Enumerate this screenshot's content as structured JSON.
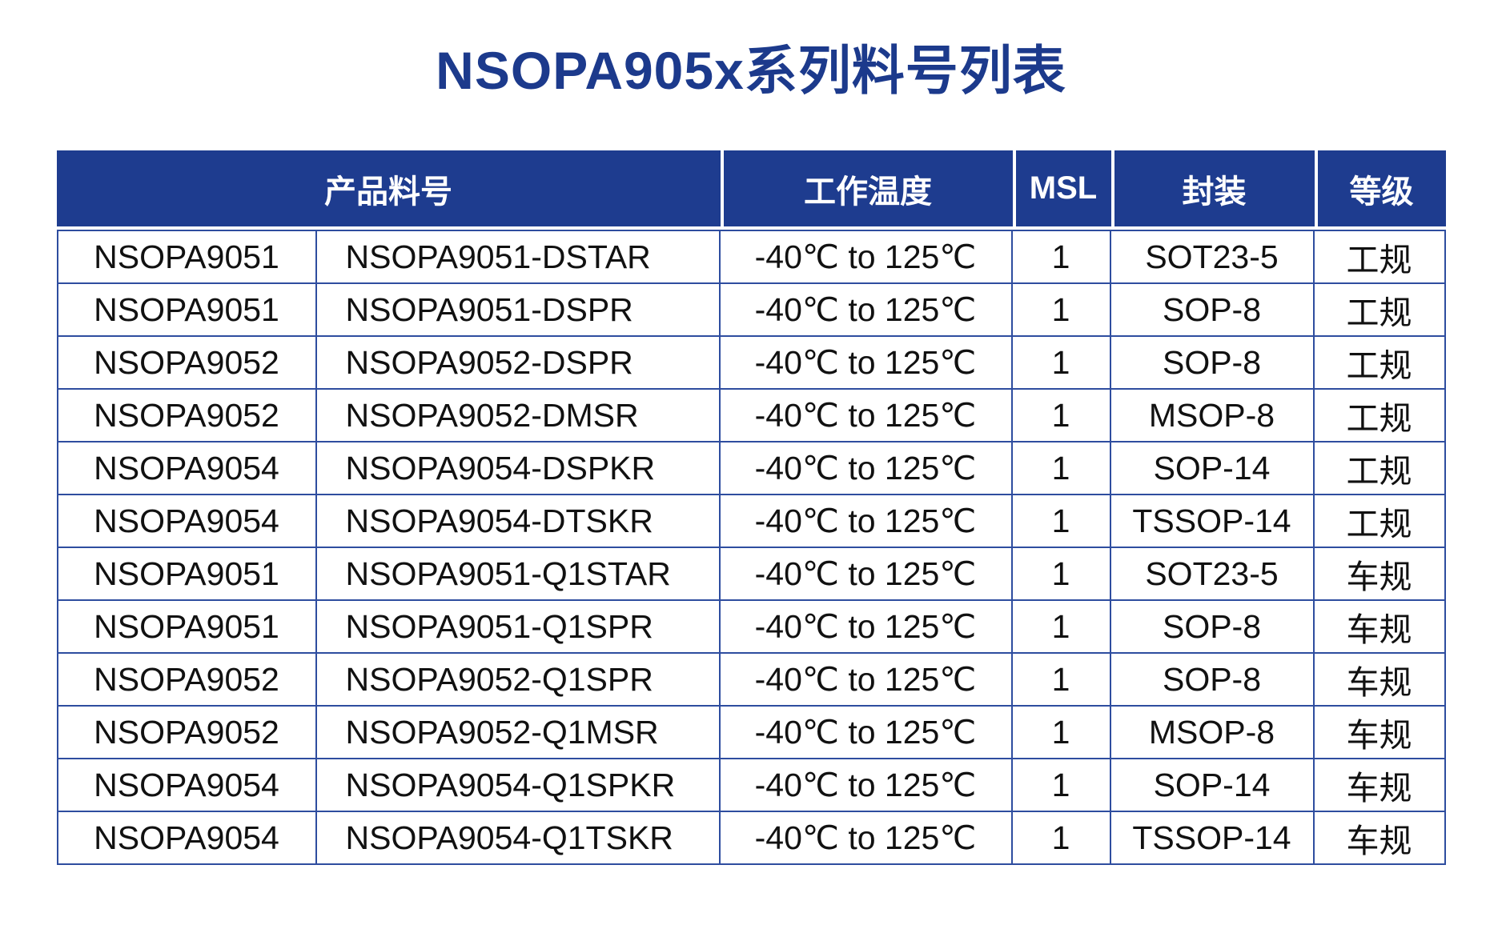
{
  "title": "NSOPA905x系列料号列表",
  "colors": {
    "title_text": "#1c3a8c",
    "header_bg": "#1e3c8f",
    "header_text": "#ffffff",
    "grid_border": "#2e4d9f",
    "cell_text": "#111111"
  },
  "table": {
    "headers": [
      {
        "label": "产品料号",
        "colspan": 2
      },
      {
        "label": "工作温度",
        "colspan": 1
      },
      {
        "label": "MSL",
        "colspan": 1
      },
      {
        "label": "封装",
        "colspan": 1
      },
      {
        "label": "等级",
        "colspan": 1
      }
    ],
    "rows": [
      [
        "NSOPA9051",
        "NSOPA9051-DSTAR",
        "-40℃ to 125℃",
        "1",
        "SOT23-5",
        "工规"
      ],
      [
        "NSOPA9051",
        "NSOPA9051-DSPR",
        "-40℃ to 125℃",
        "1",
        "SOP-8",
        "工规"
      ],
      [
        "NSOPA9052",
        "NSOPA9052-DSPR",
        "-40℃ to 125℃",
        "1",
        "SOP-8",
        "工规"
      ],
      [
        "NSOPA9052",
        "NSOPA9052-DMSR",
        "-40℃ to 125℃",
        "1",
        "MSOP-8",
        "工规"
      ],
      [
        "NSOPA9054",
        "NSOPA9054-DSPKR",
        "-40℃ to 125℃",
        "1",
        "SOP-14",
        "工规"
      ],
      [
        "NSOPA9054",
        "NSOPA9054-DTSKR",
        "-40℃ to 125℃",
        "1",
        "TSSOP-14",
        "工规"
      ],
      [
        "NSOPA9051",
        "NSOPA9051-Q1STAR",
        "-40℃ to 125℃",
        "1",
        "SOT23-5",
        "车规"
      ],
      [
        "NSOPA9051",
        "NSOPA9051-Q1SPR",
        "-40℃ to 125℃",
        "1",
        "SOP-8",
        "车规"
      ],
      [
        "NSOPA9052",
        "NSOPA9052-Q1SPR",
        "-40℃ to 125℃",
        "1",
        "SOP-8",
        "车规"
      ],
      [
        "NSOPA9052",
        "NSOPA9052-Q1MSR",
        "-40℃ to 125℃",
        "1",
        "MSOP-8",
        "车规"
      ],
      [
        "NSOPA9054",
        "NSOPA9054-Q1SPKR",
        "-40℃ to 125℃",
        "1",
        "SOP-14",
        "车规"
      ],
      [
        "NSOPA9054",
        "NSOPA9054-Q1TSKR",
        "-40℃ to 125℃",
        "1",
        "TSSOP-14",
        "车规"
      ]
    ]
  }
}
